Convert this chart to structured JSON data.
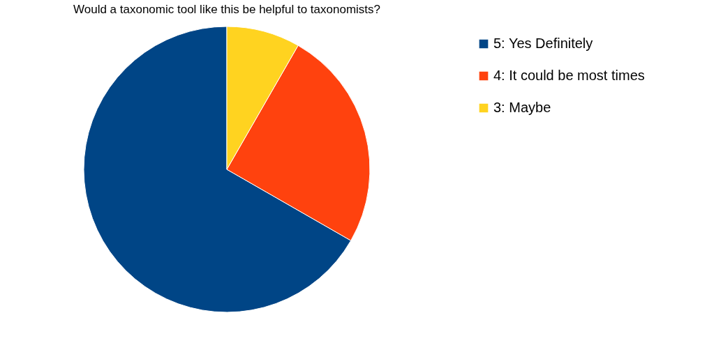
{
  "chart_data": {
    "type": "pie",
    "title": "Would a taxonomic tool like this be helpful to taxonomists?",
    "categories": [
      "5: Yes Definitely",
      "4: It could be most times",
      "3: Maybe"
    ],
    "values": [
      66.7,
      25,
      8.3
    ],
    "colors": [
      "#004586",
      "#ff420e",
      "#ffd320"
    ],
    "legend": "right"
  }
}
